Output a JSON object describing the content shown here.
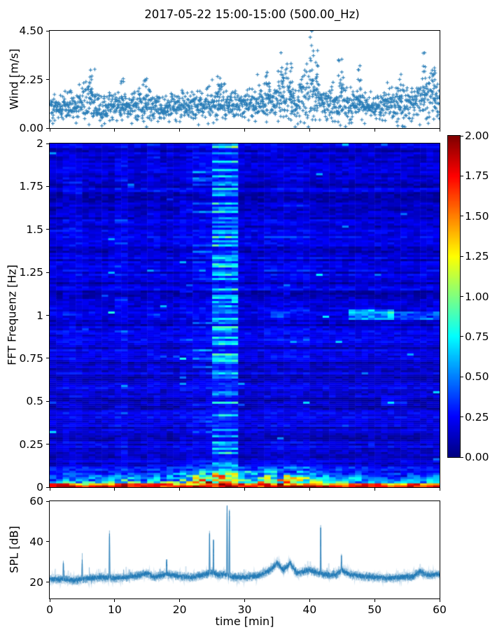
{
  "figure": {
    "title": "2017-05-22 15:00-15:00 (500.00_Hz)",
    "accent_color": "#1f77b4",
    "background": "#ffffff"
  },
  "chart_data": [
    {
      "id": "wind",
      "type": "scatter",
      "ylabel": "Wind [m/s]",
      "xlim": [
        0,
        60
      ],
      "ylim": [
        0.0,
        4.5
      ],
      "ytick_values": [
        0.0,
        2.25,
        4.5
      ],
      "ytick_labels": [
        "0.00",
        "2.25",
        "4.50"
      ],
      "xtick_values": [
        0,
        10,
        20,
        30,
        40,
        50,
        60
      ],
      "marker": "plus",
      "color": "#1f77b4",
      "seed": 42,
      "points_per_minute": 28,
      "envelope_t": [
        0,
        2,
        4,
        6,
        8,
        10,
        12,
        14,
        16,
        18,
        20,
        22,
        24,
        26,
        28,
        30,
        32,
        34,
        36,
        38,
        40,
        42,
        44,
        46,
        48,
        50,
        52,
        54,
        56,
        58,
        60
      ],
      "envelope_mean": [
        0.9,
        1.0,
        1.05,
        1.35,
        0.85,
        1.15,
        1.0,
        1.15,
        0.9,
        0.9,
        1.1,
        1.0,
        1.1,
        1.2,
        1.1,
        1.05,
        1.15,
        1.3,
        1.5,
        1.2,
        1.7,
        1.1,
        1.3,
        1.15,
        1.05,
        1.0,
        1.1,
        1.15,
        1.05,
        1.5,
        1.2
      ],
      "envelope_spread": [
        0.3,
        0.32,
        0.35,
        0.5,
        0.3,
        0.42,
        0.32,
        0.4,
        0.3,
        0.28,
        0.35,
        0.3,
        0.35,
        0.42,
        0.35,
        0.32,
        0.4,
        0.5,
        0.65,
        0.4,
        0.85,
        0.35,
        0.55,
        0.45,
        0.35,
        0.3,
        0.35,
        0.4,
        0.35,
        0.65,
        0.4
      ],
      "gusts": [
        {
          "t": 6.3,
          "peak": 2.7
        },
        {
          "t": 11.0,
          "peak": 2.3
        },
        {
          "t": 14.6,
          "peak": 2.3
        },
        {
          "t": 26.0,
          "peak": 2.4
        },
        {
          "t": 33.5,
          "peak": 2.6
        },
        {
          "t": 35.8,
          "peak": 3.5
        },
        {
          "t": 37.0,
          "peak": 3.0
        },
        {
          "t": 40.3,
          "peak": 4.5
        },
        {
          "t": 41.0,
          "peak": 3.6
        },
        {
          "t": 44.6,
          "peak": 3.2
        },
        {
          "t": 47.6,
          "peak": 2.9
        },
        {
          "t": 53.8,
          "peak": 2.5
        },
        {
          "t": 57.6,
          "peak": 3.5
        },
        {
          "t": 59.0,
          "peak": 2.8
        }
      ]
    },
    {
      "id": "spectrogram",
      "type": "heatmap",
      "ylabel": "FFT Frequenz [Hz]",
      "xlim": [
        0,
        60
      ],
      "ylim": [
        0,
        2
      ],
      "ytick_values": [
        0,
        0.25,
        0.5,
        0.75,
        1,
        1.25,
        1.5,
        1.75,
        2
      ],
      "ytick_labels": [
        "0",
        "0.25",
        "0.5",
        "0.75",
        "1",
        "1.25",
        "1.5",
        "1.75",
        "2"
      ],
      "xtick_values": [
        0,
        10,
        20,
        30,
        40,
        50,
        60
      ],
      "colormap": "jet",
      "clim": [
        0,
        2
      ],
      "colorbar": {
        "tick_values": [
          0,
          0.25,
          0.5,
          0.75,
          1.0,
          1.25,
          1.5,
          1.75,
          2.0
        ],
        "tick_labels": [
          "0.00",
          "0.25",
          "0.50",
          "0.75",
          "1.00",
          "1.25",
          "1.50",
          "1.75",
          "2.00"
        ]
      },
      "seed": 7,
      "time_bins": 60,
      "freq_bins": 164,
      "base_level": 0.14,
      "row_noise": 0.09,
      "cell_noise": 0.08,
      "fleck_chance": 0.004,
      "fleck_boost": 0.35,
      "vertical_bands": [
        {
          "t0": 2.3,
          "t1": 4.8,
          "boost": 0.03,
          "stripe_chance": 0.08,
          "stripe_max": 0.15
        },
        {
          "t0": 9.9,
          "t1": 12.5,
          "boost": 0.045,
          "stripe_chance": 0.1,
          "stripe_max": 0.18
        },
        {
          "t0": 15.0,
          "t1": 17.5,
          "boost": 0.03,
          "stripe_chance": 0.08,
          "stripe_max": 0.15
        },
        {
          "t0": 20.0,
          "t1": 22.4,
          "boost": 0.025,
          "stripe_chance": 0.08,
          "stripe_max": 0.15
        },
        {
          "t0": 22.4,
          "t1": 24.8,
          "boost": 0.055,
          "stripe_chance": 0.15,
          "stripe_max": 0.25
        },
        {
          "t0": 24.8,
          "t1": 29.5,
          "boost": 0.13,
          "stripe_chance": 0.45,
          "stripe_max": 0.55
        },
        {
          "t0": 33.0,
          "t1": 40.0,
          "boost": 0.025,
          "stripe_chance": 0.06,
          "stripe_max": 0.12
        }
      ],
      "horizontal_features": [
        {
          "f0": 0.975,
          "f1": 1.035,
          "t0": 46.0,
          "t1": 52.5,
          "boost": 0.38
        },
        {
          "f0": 0.98,
          "f1": 1.03,
          "t0": 52.5,
          "t1": 60.0,
          "boost": 0.22
        },
        {
          "f0": 0.99,
          "f1": 1.03,
          "t0": 34.5,
          "t1": 36.5,
          "boost": 0.15
        },
        {
          "f0": 0.47,
          "f1": 0.52,
          "t0": 51.5,
          "t1": 55.0,
          "boost": 0.12
        }
      ],
      "low_freq": {
        "knee_hz": 0.17,
        "profile_t": [
          0,
          5,
          10,
          15,
          20,
          22,
          24,
          26,
          28,
          30,
          32,
          34,
          36,
          38,
          40,
          42,
          45,
          48,
          52,
          56,
          60
        ],
        "profile_v": [
          0.45,
          0.55,
          0.7,
          0.6,
          0.8,
          1.1,
          1.5,
          1.3,
          1.0,
          0.9,
          1.0,
          1.5,
          1.6,
          1.3,
          1.2,
          0.8,
          0.75,
          0.6,
          0.5,
          0.55,
          0.7
        ],
        "bottom_value": 1.9,
        "bottom_rows": 2
      }
    },
    {
      "id": "spl",
      "type": "line",
      "ylabel": "SPL [dB]",
      "xlabel": "time [min]",
      "xlim": [
        0,
        60
      ],
      "ylim": [
        12,
        60
      ],
      "ytick_values": [
        20,
        40,
        60
      ],
      "ytick_labels": [
        "20",
        "40",
        "60"
      ],
      "xtick_values": [
        0,
        10,
        20,
        30,
        40,
        50,
        60
      ],
      "xtick_labels": [
        "0",
        "10",
        "20",
        "30",
        "40",
        "50",
        "60"
      ],
      "color": "#1f77b4",
      "seed": 99,
      "noise": 1.1,
      "baseline_t": [
        0,
        2,
        4,
        6,
        8,
        10,
        12,
        14,
        15,
        16,
        18,
        20,
        22,
        24,
        25,
        26,
        27,
        28,
        30,
        32,
        34,
        35,
        36,
        37,
        38,
        40,
        42,
        44,
        45,
        46,
        48,
        50,
        52,
        54,
        56,
        57,
        58,
        60
      ],
      "baseline_v": [
        21.5,
        21.5,
        21,
        22,
        22.5,
        22,
        22.5,
        23.5,
        24.5,
        22.5,
        24,
        23,
        22.5,
        24,
        25,
        23.5,
        24,
        22.5,
        22.5,
        23,
        26,
        29.5,
        26,
        29.5,
        24.5,
        26,
        24,
        23.5,
        26,
        24,
        23,
        22.5,
        22,
        22.5,
        23,
        25.5,
        23.5,
        24
      ],
      "spikes": [
        {
          "t": 2.1,
          "v": 30
        },
        {
          "t": 5.0,
          "v": 31
        },
        {
          "t": 9.2,
          "v": 45
        },
        {
          "t": 18.0,
          "v": 31
        },
        {
          "t": 24.6,
          "v": 44
        },
        {
          "t": 25.2,
          "v": 40
        },
        {
          "t": 27.3,
          "v": 57
        },
        {
          "t": 27.65,
          "v": 55
        },
        {
          "t": 41.7,
          "v": 47
        },
        {
          "t": 44.9,
          "v": 33
        }
      ]
    }
  ]
}
